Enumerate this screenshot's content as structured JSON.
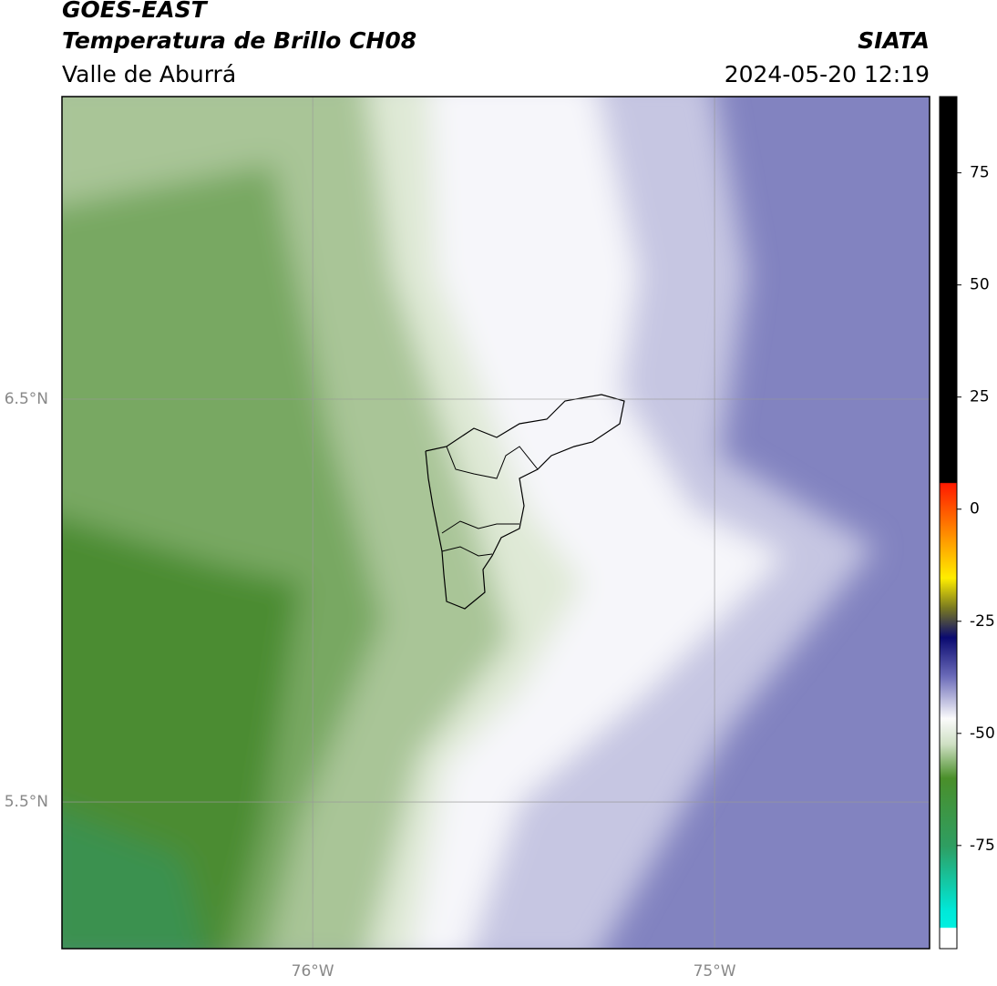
{
  "header": {
    "title": "GOES-EAST",
    "subtitle": "Temperatura de Brillo CH08",
    "region": "Valle de Aburrá",
    "source": "SIATA",
    "datetime": "2024-05-20 12:19"
  },
  "map": {
    "xlim": [
      -76.624,
      -74.465
    ],
    "ylim": [
      5.136,
      7.251
    ],
    "xticks": [
      {
        "value": -76,
        "label": "76°W"
      },
      {
        "value": -75,
        "label": "75°W"
      }
    ],
    "yticks": [
      {
        "value": 6.5,
        "label": "6.5°N"
      },
      {
        "value": 5.5,
        "label": "5.5°N"
      }
    ]
  },
  "colorbar": {
    "lim": [
      -98,
      92
    ],
    "ticks": [
      75,
      50,
      25,
      0,
      -25,
      -50,
      -75
    ]
  }
}
